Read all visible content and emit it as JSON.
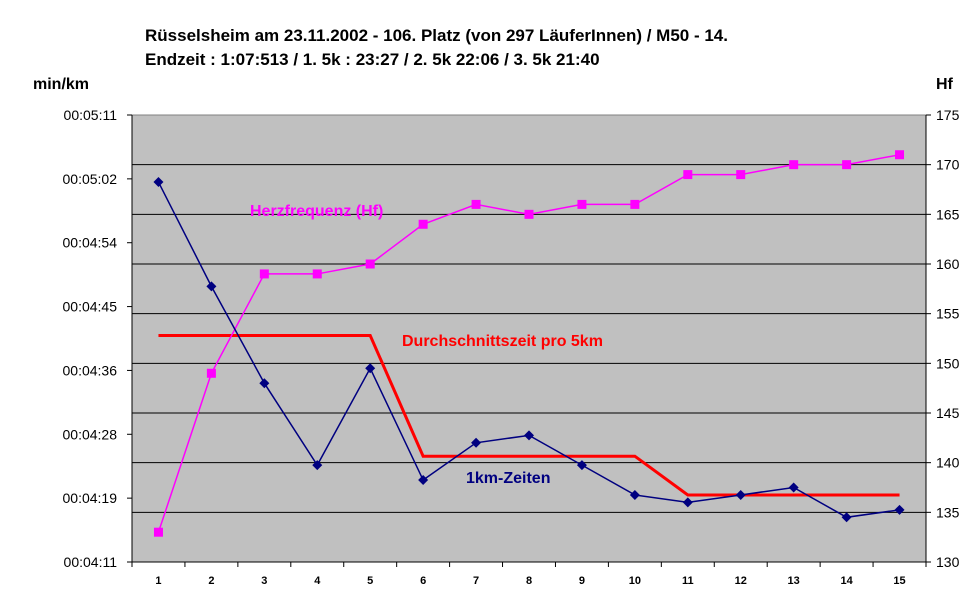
{
  "title_line1": "Rüsselsheim am 23.11.2002 - 106. Platz (von 297 LäuferInnen) / M50 - 14.",
  "title_line2": "Endzeit : 1:07:513  / 1. 5k : 23:27  / 2. 5k  22:06 / 3. 5k  21:40",
  "left_axis_unit": "min/km",
  "right_axis_unit": "Hf",
  "chart_data": {
    "type": "line",
    "x": [
      1,
      2,
      3,
      4,
      5,
      6,
      7,
      8,
      9,
      10,
      11,
      12,
      13,
      14,
      15
    ],
    "x_tick_labels": [
      "1",
      "2",
      "3",
      "4",
      "5",
      "6",
      "7",
      "8",
      "9",
      "10",
      "11",
      "12",
      "13",
      "14",
      "15"
    ],
    "left_axis": {
      "label": "min/km",
      "tick_labels": [
        "00:04:11",
        "00:04:19",
        "00:04:28",
        "00:04:36",
        "00:04:45",
        "00:04:54",
        "00:05:02",
        "00:05:11"
      ],
      "ylim_seconds": [
        251,
        311
      ]
    },
    "right_axis": {
      "label": "Hf",
      "tick_labels": [
        "130",
        "135",
        "140",
        "145",
        "150",
        "155",
        "160",
        "165",
        "170",
        "175"
      ],
      "ylim": [
        130,
        175
      ]
    },
    "grid": "horizontal",
    "plot_background": "#c0c0c0",
    "series": [
      {
        "name": "1km-Zeiten",
        "axis": "left",
        "color": "#000080",
        "marker": "diamond",
        "values_seconds": [
          302,
          288,
          275,
          264,
          277,
          262,
          267,
          268,
          264,
          260,
          259,
          260,
          261,
          257,
          258
        ]
      },
      {
        "name": "Herzfrequenz (Hf)",
        "axis": "right",
        "color": "#ff00ff",
        "marker": "square",
        "values": [
          133,
          149,
          159,
          159,
          160,
          164,
          166,
          165,
          166,
          166,
          169,
          169,
          170,
          170,
          171
        ]
      },
      {
        "name": "Durchschnittszeit pro 5km",
        "axis": "left",
        "color": "#ff0000",
        "marker": "none",
        "values_seconds": [
          281.4,
          281.4,
          281.4,
          281.4,
          281.4,
          265.2,
          265.2,
          265.2,
          265.2,
          265.2,
          260,
          260,
          260,
          260,
          260
        ]
      }
    ]
  }
}
